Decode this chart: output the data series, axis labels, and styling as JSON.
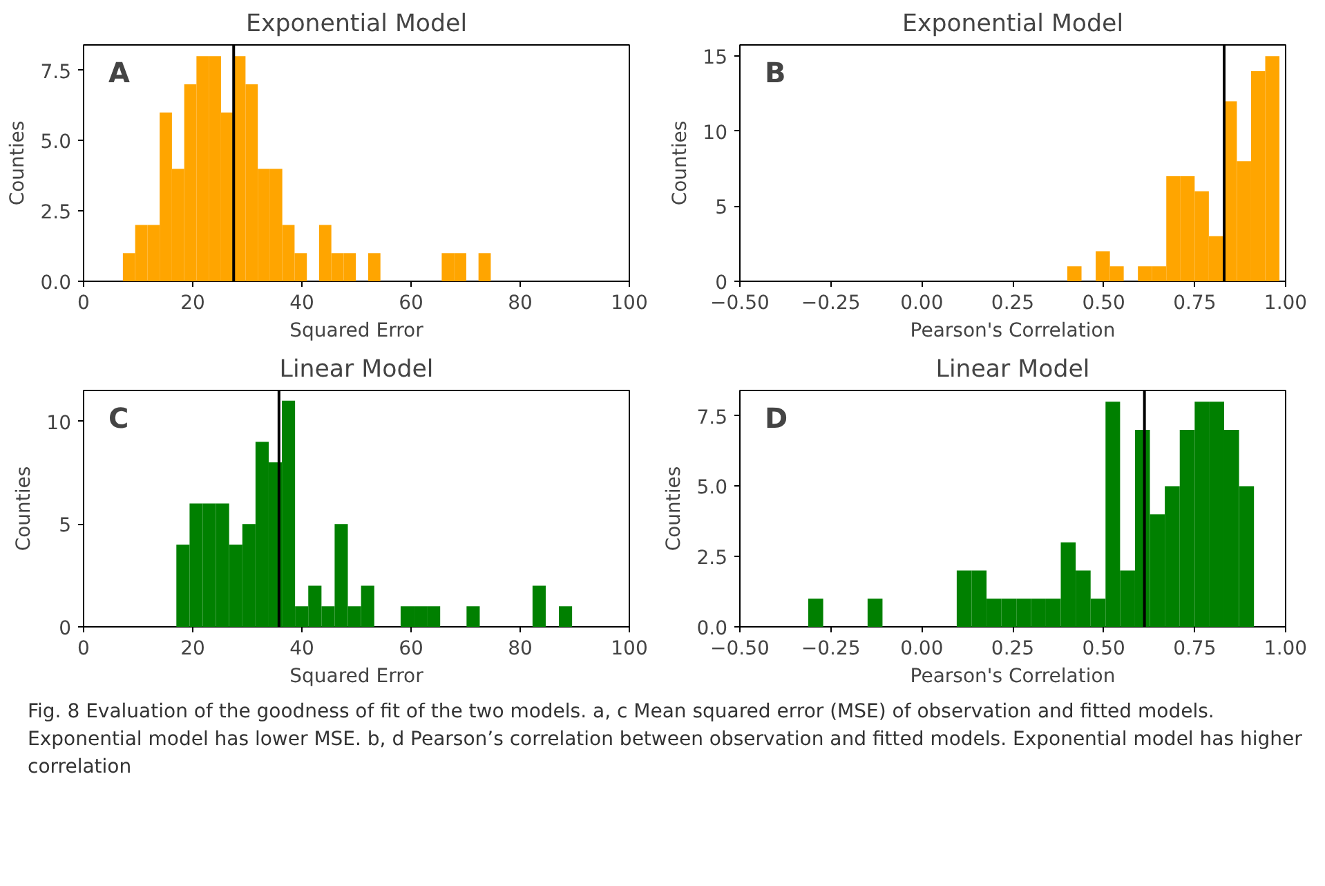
{
  "chart_data": [
    {
      "type": "histogram",
      "title": "Exponential Model",
      "xlabel": "Squared Error",
      "ylabel": "Counties",
      "annotations": [
        "A"
      ],
      "color": "#ffa500",
      "bins": [
        7.2,
        9.45,
        11.69,
        13.94,
        16.19,
        18.44,
        20.68,
        22.93,
        25.18,
        27.42,
        29.67,
        31.92,
        34.16,
        36.41,
        38.66,
        40.91,
        43.15,
        45.4,
        47.65,
        49.89,
        52.14,
        54.39,
        65.62,
        67.87,
        70.12,
        72.36,
        74.61
      ],
      "values": [
        1,
        2,
        2,
        6,
        4,
        7,
        8,
        8,
        6,
        8,
        7,
        4,
        4,
        2,
        1,
        0,
        2,
        1,
        1,
        0,
        1,
        0,
        1,
        1,
        0,
        1
      ],
      "xlim": [
        0,
        100
      ],
      "xticks": [
        0,
        20,
        40,
        60,
        80,
        100
      ],
      "ylim": [
        0,
        8.4
      ],
      "yticks": [
        {
          "value": 0,
          "label": "0.0"
        },
        {
          "value": 2.5,
          "label": "2.5"
        },
        {
          "value": 5,
          "label": "5.0"
        },
        {
          "value": 7.5,
          "label": "7.5"
        }
      ],
      "ref_lines": [
        {
          "axis": "x",
          "value": 27.5,
          "color": "#000000"
        }
      ],
      "grid": false
    },
    {
      "type": "histogram",
      "title": "Exponential Model",
      "xlabel": "Pearson's Correlation",
      "ylabel": "Counties",
      "annotations": [
        "B"
      ],
      "color": "#ffa500",
      "bins": [
        0.4,
        0.439,
        0.478,
        0.517,
        0.555,
        0.594,
        0.633,
        0.672,
        0.711,
        0.75,
        0.789,
        0.828,
        0.866,
        0.905,
        0.944,
        0.983
      ],
      "values": [
        1,
        0,
        2,
        1,
        0,
        1,
        1,
        7,
        7,
        6,
        3,
        12,
        8,
        14,
        15
      ],
      "xlim": [
        -0.5,
        1.0
      ],
      "xticks": [
        {
          "value": -0.5,
          "label": "−0.50"
        },
        {
          "value": -0.25,
          "label": "−0.25"
        },
        {
          "value": 0,
          "label": "0.00"
        },
        {
          "value": 0.25,
          "label": "0.25"
        },
        {
          "value": 0.5,
          "label": "0.50"
        },
        {
          "value": 0.75,
          "label": "0.75"
        },
        {
          "value": 1.0,
          "label": "1.00"
        }
      ],
      "ylim": [
        0,
        15.75
      ],
      "yticks": [
        0,
        5,
        10,
        15
      ],
      "ref_lines": [
        {
          "axis": "x",
          "value": 0.831,
          "color": "#000000"
        }
      ],
      "grid": false
    },
    {
      "type": "histogram",
      "title": "Linear Model",
      "xlabel": "Squared Error",
      "ylabel": "Counties",
      "annotations": [
        "C"
      ],
      "color": "#008000",
      "bins": [
        17.0,
        19.42,
        21.83,
        24.25,
        26.67,
        29.09,
        31.5,
        33.92,
        36.34,
        38.75,
        41.17,
        43.59,
        46.0,
        48.42,
        50.84,
        53.26,
        58.09,
        60.51,
        62.92,
        65.34,
        70.17,
        72.59,
        82.26,
        84.68,
        87.09,
        89.51
      ],
      "values": [
        4,
        6,
        6,
        6,
        4,
        5,
        9,
        8,
        11,
        1,
        2,
        1,
        5,
        1,
        2,
        0,
        1,
        1,
        1,
        0,
        1,
        0,
        2,
        0,
        1
      ],
      "xlim": [
        0,
        100
      ],
      "xticks": [
        0,
        20,
        40,
        60,
        80,
        100
      ],
      "ylim": [
        0,
        11.5
      ],
      "yticks": [
        0,
        5,
        10
      ],
      "ref_lines": [
        {
          "axis": "x",
          "value": 35.8,
          "color": "#000000"
        }
      ],
      "grid": false
    },
    {
      "type": "histogram",
      "title": "Linear Model",
      "xlabel": "Pearson's Correlation",
      "ylabel": "Counties",
      "color": "#008000",
      "annotations": [
        "D",
        "Fig. 8  Evaluation of the goodness of fit of the two models. a, c Mean squared error (MSE) of observation and fitted models. Exponential model has lower MSE. b, d Pearson’s correlation between observation and fitted models. Exponential model has higher correlation"
      ],
      "bins": [
        -0.312,
        -0.271,
        -0.149,
        -0.108,
        0.096,
        0.137,
        0.178,
        0.219,
        0.26,
        0.3,
        0.341,
        0.382,
        0.423,
        0.464,
        0.505,
        0.545,
        0.586,
        0.627,
        0.668,
        0.709,
        0.75,
        0.791,
        0.831,
        0.872,
        0.913
      ],
      "values": [
        1,
        0,
        1,
        0,
        2,
        2,
        1,
        1,
        1,
        1,
        1,
        3,
        2,
        1,
        8,
        2,
        7,
        4,
        5,
        7,
        8,
        8,
        7,
        5
      ],
      "xlim": [
        -0.5,
        1.0
      ],
      "xticks": [
        {
          "value": -0.5,
          "label": "−0.50"
        },
        {
          "value": -0.25,
          "label": "−0.25"
        },
        {
          "value": 0,
          "label": "0.00"
        },
        {
          "value": 0.25,
          "label": "0.25"
        },
        {
          "value": 0.5,
          "label": "0.50"
        },
        {
          "value": 0.75,
          "label": "0.75"
        },
        {
          "value": 1.0,
          "label": "1.00"
        }
      ],
      "ylim": [
        0,
        8.4
      ],
      "yticks": [
        {
          "value": 0,
          "label": "0.0"
        },
        {
          "value": 2.5,
          "label": "2.5"
        },
        {
          "value": 5,
          "label": "5.0"
        },
        {
          "value": 7.5,
          "label": "7.5"
        }
      ],
      "ref_lines": [
        {
          "axis": "x",
          "value": 0.612,
          "color": "#000000"
        }
      ],
      "grid": false
    }
  ]
}
